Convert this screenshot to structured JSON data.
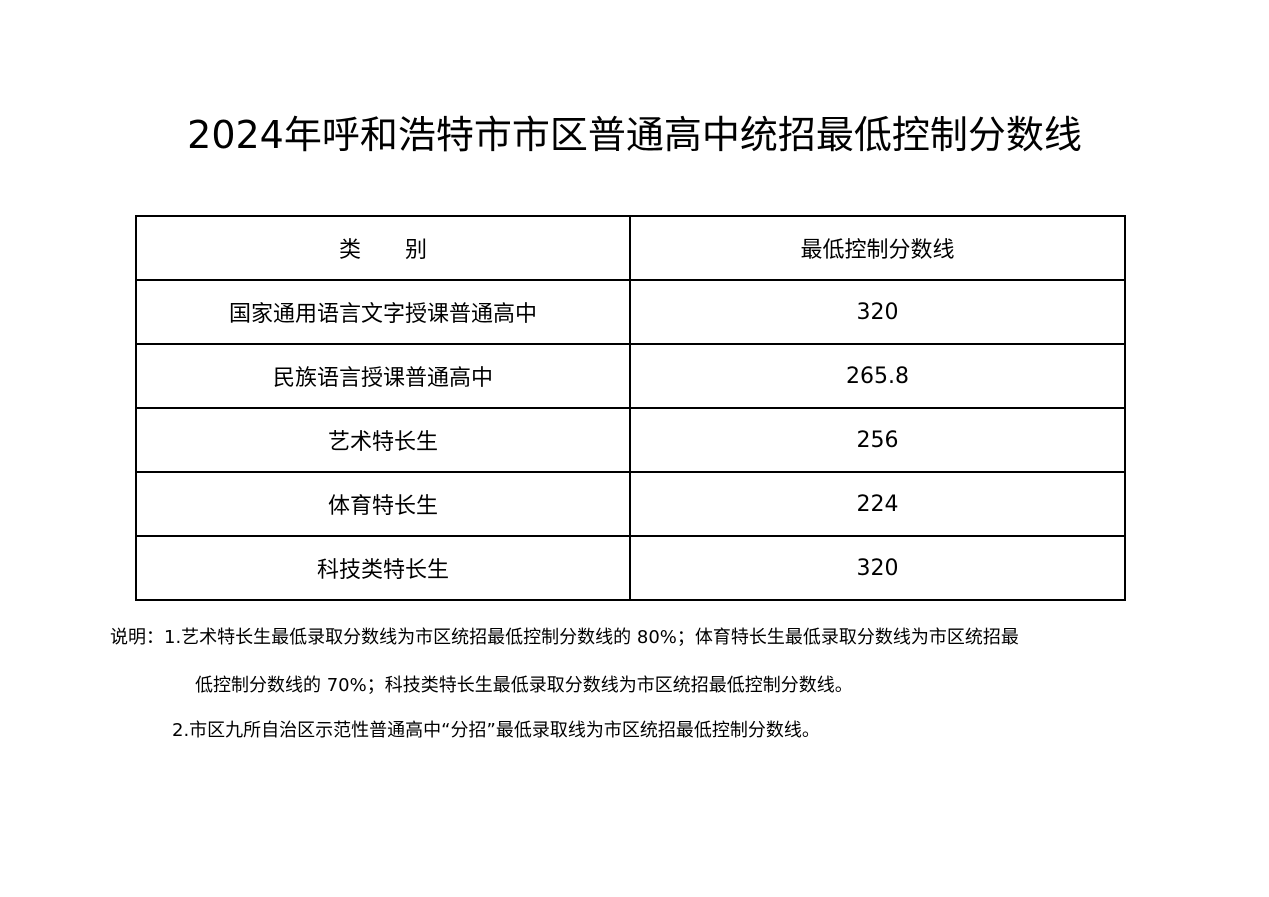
{
  "title": "2024年呼和浩特市市区普通高中统招最低控制分数线",
  "table": {
    "headers": [
      "类　　别",
      "最低控制分数线"
    ],
    "rows": [
      {
        "category": "国家通用语言文字授课普通高中",
        "score": "320"
      },
      {
        "category": "民族语言授课普通高中",
        "score": "265.8"
      },
      {
        "category": "艺术特长生",
        "score": "256"
      },
      {
        "category": "体育特长生",
        "score": "224"
      },
      {
        "category": "科技类特长生",
        "score": "320"
      }
    ]
  },
  "notes": {
    "line1": "说明：1.艺术特长生最低录取分数线为市区统招最低控制分数线的 80%；体育特长生最低录取分数线为市区统招最",
    "line2": "低控制分数线的 70%；科技类特长生最低录取分数线为市区统招最低控制分数线。",
    "line3": "2.市区九所自治区示范性普通高中“分招”最低录取线为市区统招最低控制分数线。"
  }
}
